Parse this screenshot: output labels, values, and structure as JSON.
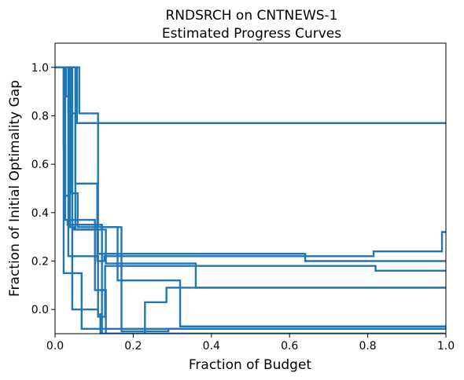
{
  "chart_data": {
    "type": "line",
    "title": [
      "RNDSRCH on CNTNEWS-1",
      "Estimated Progress Curves"
    ],
    "xlabel": "Fraction of Budget",
    "ylabel": "Fraction of Initial Optimality Gap",
    "xlim": [
      0,
      1
    ],
    "ylim": [
      -0.1,
      1.1
    ],
    "xticks": [
      0,
      0.2,
      0.4,
      0.6,
      0.8,
      1.0
    ],
    "xtick_labels": [
      "0.0",
      "0.2",
      "0.4",
      "0.6",
      "0.8",
      "1.0"
    ],
    "yticks": [
      0,
      0.2,
      0.4,
      0.6,
      0.8,
      1.0
    ],
    "ytick_labels": [
      "0.0",
      "0.2",
      "0.4",
      "0.6",
      "0.8",
      "1.0"
    ],
    "grid": false,
    "legend": null,
    "series_color": "#1f77b4",
    "series": [
      {
        "x": [
          0,
          0.022,
          0.022,
          0.068,
          0.068,
          1.0
        ],
        "y": [
          1.0,
          1.0,
          0.15,
          0.15,
          -0.08,
          -0.08
        ]
      },
      {
        "x": [
          0,
          0.022,
          0.022,
          0.026,
          0.026,
          0.032,
          0.032,
          0.12,
          0.12,
          1.0
        ],
        "y": [
          1.0,
          1.0,
          0.68,
          0.68,
          0.37,
          0.37,
          0.35,
          0.35,
          -0.1,
          -0.1
        ]
      },
      {
        "x": [
          0,
          0.026,
          0.026,
          0.036,
          0.036,
          0.102,
          0.102,
          0.13,
          0.13,
          1.0
        ],
        "y": [
          1.0,
          1.0,
          0.47,
          0.47,
          0.37,
          0.37,
          0.08,
          0.08,
          -0.1,
          -0.1
        ]
      },
      {
        "x": [
          0,
          0.028,
          0.028,
          0.034,
          0.034,
          0.11,
          0.11,
          0.116,
          0.116,
          0.23,
          0.23,
          0.285,
          0.285,
          1.0
        ],
        "y": [
          1.0,
          1.0,
          0.88,
          0.88,
          0.22,
          0.22,
          -0.02,
          -0.02,
          -0.1,
          -0.1,
          0.03,
          0.03,
          0.09,
          0.09
        ]
      },
      {
        "x": [
          0,
          0.034,
          0.034,
          0.052,
          0.052,
          0.108,
          0.108,
          0.126,
          0.126,
          0.815,
          0.815,
          0.99,
          0.99,
          1.0
        ],
        "y": [
          1.0,
          1.0,
          0.81,
          0.81,
          0.52,
          0.52,
          0.2,
          0.2,
          0.22,
          0.22,
          0.24,
          0.24,
          0.32,
          0.32
        ]
      },
      {
        "x": [
          0,
          0.038,
          0.038,
          0.048,
          0.048,
          0.13,
          0.13,
          0.36,
          0.36,
          1.0
        ],
        "y": [
          1.0,
          1.0,
          0.34,
          0.34,
          0.33,
          0.33,
          0.19,
          0.19,
          0.09,
          0.09
        ]
      },
      {
        "x": [
          0,
          0.042,
          0.042,
          0.058,
          0.058,
          0.16,
          0.16,
          0.64,
          0.64,
          1.0
        ],
        "y": [
          1.0,
          1.0,
          0.48,
          0.48,
          0.34,
          0.34,
          0.23,
          0.23,
          0.2,
          0.2
        ]
      },
      {
        "x": [
          0,
          0.044,
          0.044,
          0.11,
          0.11,
          0.128,
          0.128,
          0.82,
          0.82,
          1.0
        ],
        "y": [
          1.0,
          1.0,
          0.0,
          0.0,
          -0.03,
          -0.03,
          0.18,
          0.18,
          0.16,
          0.16
        ]
      },
      {
        "x": [
          0,
          0.052,
          0.052,
          0.11,
          0.11,
          0.16,
          0.16,
          0.32,
          0.32,
          1.0
        ],
        "y": [
          1.0,
          1.0,
          0.33,
          0.33,
          0.23,
          0.23,
          0.12,
          0.12,
          -0.07,
          -0.07
        ]
      },
      {
        "x": [
          0,
          0.062,
          0.062,
          0.11,
          0.11,
          0.17,
          0.17,
          0.29,
          0.29,
          1.0
        ],
        "y": [
          1.0,
          1.0,
          0.81,
          0.81,
          0.34,
          0.34,
          -0.09,
          -0.09,
          -0.08,
          -0.08
        ]
      },
      {
        "x": [
          0,
          0.056,
          0.056,
          0.062,
          0.062,
          1.0
        ],
        "y": [
          1.0,
          1.0,
          0.77,
          0.77,
          0.77,
          0.77
        ]
      }
    ]
  }
}
